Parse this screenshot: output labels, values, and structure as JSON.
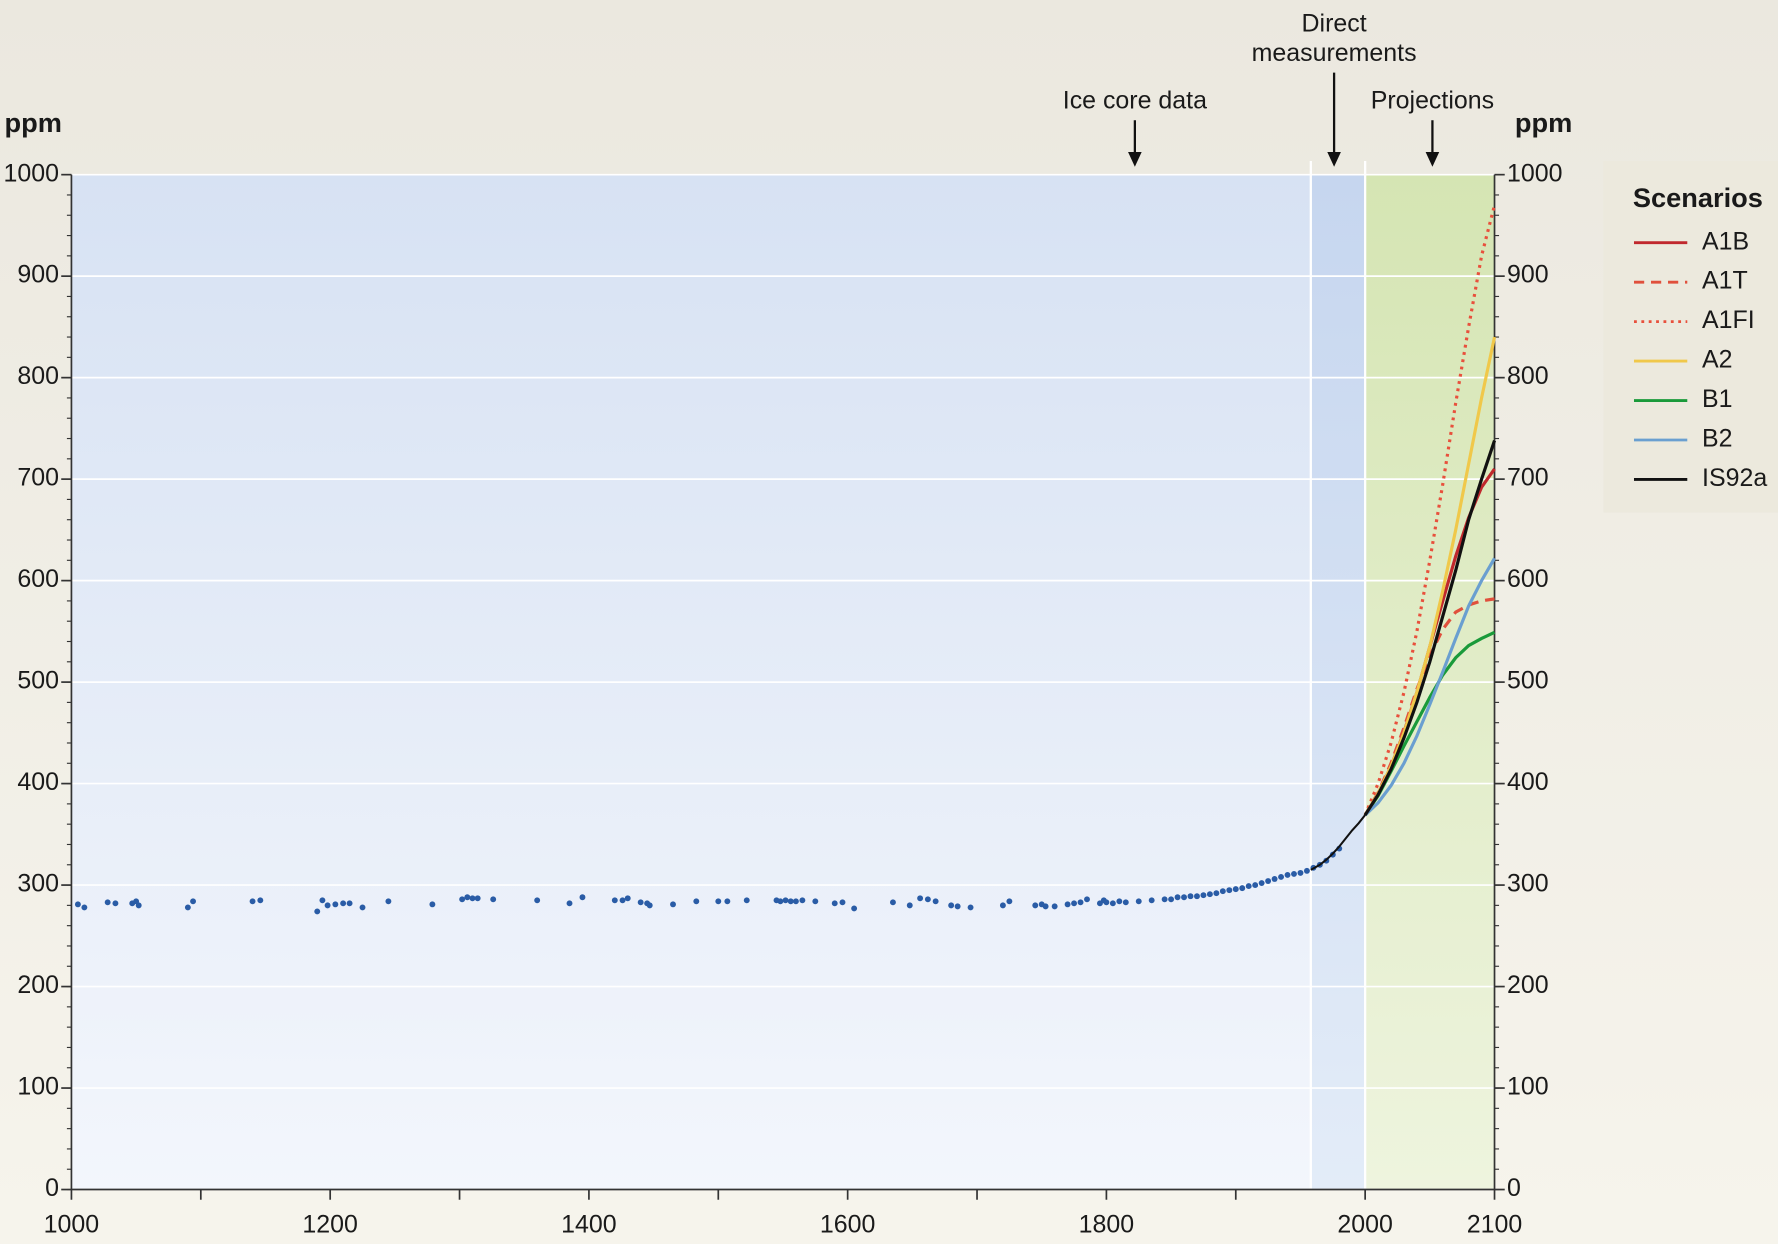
{
  "chart_data": {
    "type": "scatter",
    "ylabel": "ppm",
    "y2label": "ppm",
    "xlim": [
      1000,
      2100
    ],
    "xticks": [
      1000,
      1200,
      1400,
      1600,
      1800,
      2000,
      2100
    ],
    "xminor": [
      1100,
      1300,
      1500,
      1700,
      1900
    ],
    "ylim": [
      0,
      1000
    ],
    "yticks": [
      0,
      100,
      200,
      300,
      400,
      500,
      600,
      700,
      800,
      900,
      1000
    ],
    "y2lim": [
      0,
      1000
    ],
    "y2ticks": [
      0,
      100,
      200,
      300,
      400,
      500,
      600,
      700,
      800,
      900,
      1000
    ],
    "yminor_step": 20,
    "grid": true,
    "regions": [
      {
        "label_lines": [
          "Ice core data"
        ],
        "start": 1000,
        "end": 1958,
        "arrow_x": 1822
      },
      {
        "label_lines": [
          "Direct",
          "measurements"
        ],
        "start": 1958,
        "end": 2000,
        "arrow_x": 1976
      },
      {
        "label_lines": [
          "Projections"
        ],
        "start": 2000,
        "end": 2100,
        "arrow_x": 2052
      }
    ],
    "points": {
      "color": "#2a5ca6",
      "x": [
        1005,
        1010,
        1028,
        1034,
        1047,
        1050,
        1052,
        1090,
        1094,
        1140,
        1146,
        1190,
        1194,
        1198,
        1204,
        1210,
        1215,
        1225,
        1245,
        1279,
        1302,
        1306,
        1310,
        1314,
        1326,
        1360,
        1385,
        1395,
        1420,
        1426,
        1430,
        1440,
        1445,
        1447,
        1465,
        1483,
        1500,
        1507,
        1522,
        1545,
        1548,
        1552,
        1556,
        1560,
        1565,
        1575,
        1590,
        1596,
        1605,
        1635,
        1648,
        1656,
        1662,
        1668,
        1680,
        1685,
        1695,
        1720,
        1725,
        1745,
        1750,
        1753,
        1760,
        1770,
        1775,
        1780,
        1785,
        1795,
        1798,
        1800,
        1805,
        1810,
        1815,
        1825,
        1835,
        1845,
        1850,
        1855,
        1860,
        1865,
        1870,
        1875,
        1880,
        1885,
        1890,
        1895,
        1900,
        1905,
        1910,
        1915,
        1920,
        1925,
        1930,
        1935,
        1940,
        1945,
        1950,
        1955,
        1960,
        1965,
        1970,
        1975,
        1980
      ],
      "y": [
        281,
        278,
        283,
        282,
        282,
        284,
        280,
        278,
        284,
        284,
        285,
        274,
        285,
        280,
        281,
        282,
        282,
        278,
        284,
        281,
        286,
        288,
        287,
        287,
        286,
        285,
        282,
        288,
        285,
        285,
        287,
        283,
        282,
        280,
        281,
        284,
        284,
        284,
        285,
        285,
        284,
        285,
        284,
        284,
        285,
        284,
        282,
        283,
        277,
        283,
        280,
        287,
        286,
        284,
        280,
        279,
        278,
        280,
        284,
        280,
        281,
        279,
        279,
        281,
        282,
        283,
        286,
        282,
        285,
        283,
        282,
        284,
        283,
        284,
        285,
        286,
        286,
        288,
        288,
        289,
        289,
        290,
        291,
        292,
        294,
        295,
        296,
        297,
        299,
        300,
        302,
        304,
        306,
        308,
        310,
        311,
        312,
        314,
        317,
        320,
        324,
        330,
        336
      ]
    },
    "measurements": {
      "color": "#111111",
      "x": [
        1958,
        1965,
        1970,
        1975,
        1980,
        1985,
        1990,
        1995,
        2000
      ],
      "values": [
        315,
        320,
        325,
        331,
        338,
        346,
        354,
        361,
        369
      ]
    },
    "legend_title": "Scenarios",
    "legend": "right",
    "projection_x": [
      2000,
      2010,
      2020,
      2030,
      2040,
      2050,
      2060,
      2070,
      2080,
      2090,
      2100
    ],
    "series": [
      {
        "name": "A1B",
        "color": "#c0282d",
        "dash": "solid",
        "values": [
          369,
          390,
          417,
          451,
          490,
          535,
          580,
          624,
          662,
          692,
          710
        ]
      },
      {
        "name": "A1T",
        "color": "#e0503c",
        "dash": "dashed",
        "values": [
          369,
          391,
          420,
          455,
          493,
          526,
          552,
          569,
          576,
          580,
          582
        ]
      },
      {
        "name": "A1FI",
        "color": "#e8503c",
        "dash": "dotted",
        "values": [
          369,
          400,
          440,
          490,
          550,
          620,
          695,
          775,
          850,
          920,
          970
        ]
      },
      {
        "name": "A2",
        "color": "#f0c84a",
        "dash": "solid",
        "values": [
          369,
          390,
          417,
          450,
          490,
          535,
          590,
          650,
          715,
          780,
          840
        ]
      },
      {
        "name": "B1",
        "color": "#1a9a3a",
        "dash": "solid",
        "values": [
          369,
          388,
          412,
          437,
          461,
          485,
          507,
          524,
          536,
          543,
          549
        ]
      },
      {
        "name": "B2",
        "color": "#6a9fd0",
        "dash": "solid",
        "values": [
          369,
          381,
          398,
          420,
          447,
          478,
          510,
          543,
          575,
          600,
          622
        ]
      },
      {
        "name": "IS92a",
        "color": "#111111",
        "dash": "solid",
        "values": [
          369,
          389,
          414,
          445,
          480,
          520,
          565,
          610,
          660,
          700,
          738
        ]
      }
    ]
  }
}
